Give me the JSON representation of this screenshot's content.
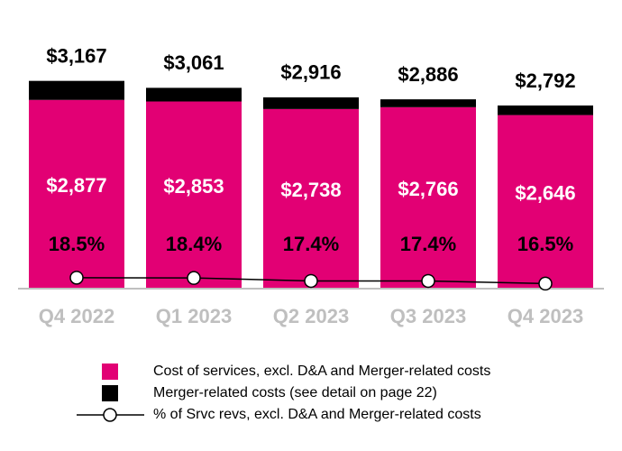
{
  "chart_data": {
    "type": "bar",
    "stacked": true,
    "categories": [
      "Q4 2022",
      "Q1 2023",
      "Q2 2023",
      "Q3 2023",
      "Q4 2023"
    ],
    "series": [
      {
        "name": "Cost of services, excl. D&A and Merger-related costs",
        "color": "#e20074",
        "values": [
          2877,
          2853,
          2738,
          2766,
          2646
        ],
        "value_labels": [
          "$2,877",
          "$2,853",
          "$2,738",
          "$2,766",
          "$2,646"
        ]
      },
      {
        "name": "Merger-related costs (see detail on page 22)",
        "color": "#000000",
        "values": [
          290,
          208,
          178,
          120,
          146
        ]
      },
      {
        "name": "% of Srvc revs, excl. D&A and Merger-related costs",
        "type": "line",
        "axis": "y2",
        "color": "#000000",
        "values": [
          18.5,
          18.4,
          17.4,
          17.4,
          16.5
        ],
        "value_labels": [
          "18.5%",
          "18.4%",
          "17.4%",
          "17.4%",
          "16.5%"
        ]
      }
    ],
    "totals": [
      3167,
      3061,
      2916,
      2886,
      2792
    ],
    "total_labels": [
      "$3,167",
      "$3,061",
      "$2,916",
      "$2,886",
      "$2,792"
    ],
    "ylim": [
      0,
      3850
    ],
    "y2lim": [
      14.8,
      100
    ]
  }
}
